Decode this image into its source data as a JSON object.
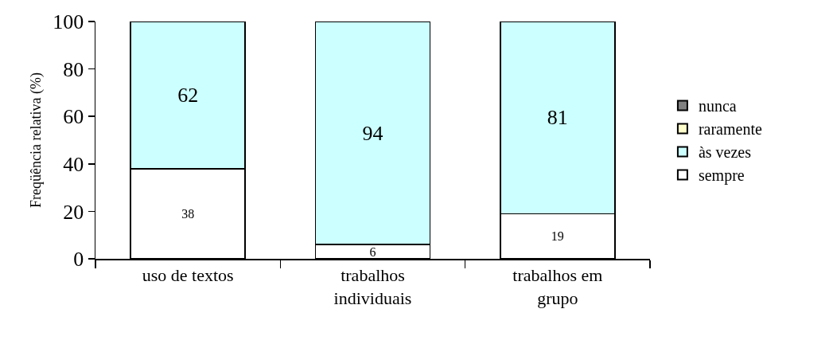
{
  "chart_data": {
    "type": "bar",
    "stacked": true,
    "ylabel": "Freqüência relativa (%)",
    "categories": [
      "uso de textos",
      "trabalhos individuais",
      "trabalhos em grupo"
    ],
    "ylim": [
      0,
      100
    ],
    "yticks": [
      0,
      20,
      40,
      60,
      80,
      100
    ],
    "grid": false,
    "legend": "right",
    "series": [
      {
        "name": "sempre",
        "color": "#ffffff",
        "values": [
          38,
          6,
          19
        ],
        "value_labels": [
          "38",
          "6",
          "19"
        ]
      },
      {
        "name": "às vezes",
        "color": "#ccffff",
        "values": [
          62,
          94,
          81
        ],
        "value_labels": [
          "62",
          "94",
          "81"
        ]
      },
      {
        "name": "raramente",
        "color": "#ffffcc",
        "values": [
          0,
          0,
          0
        ],
        "value_labels": [
          null,
          null,
          null
        ]
      },
      {
        "name": "nunca",
        "color": "#808080",
        "values": [
          0,
          0,
          0
        ],
        "value_labels": [
          null,
          null,
          null
        ]
      }
    ]
  }
}
